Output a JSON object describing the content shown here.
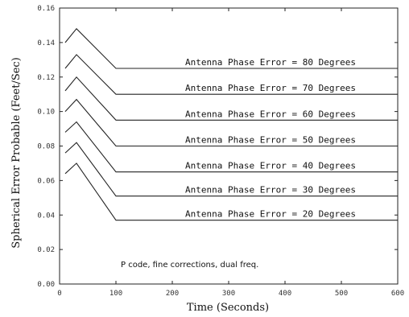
{
  "chart_data": {
    "type": "line",
    "title": "",
    "xlabel": "Time (Seconds)",
    "ylabel": "Spherical Error Probable (Feet/Sec)",
    "xlim": [
      0,
      600
    ],
    "ylim": [
      0.0,
      0.16
    ],
    "xticks": [
      "0",
      "100",
      "200",
      "300",
      "400",
      "500",
      "600"
    ],
    "yticks": [
      "0.00",
      "0.02",
      "0.04",
      "0.06",
      "0.08",
      "0.10",
      "0.12",
      "0.14",
      "0.16"
    ],
    "grid": false,
    "note": "P code, fine corrections, dual freq.",
    "series": [
      {
        "name": "Antenna Phase Error = 80 Degrees",
        "x": [
          10,
          30,
          100,
          600
        ],
        "y": [
          0.14,
          0.148,
          0.125,
          0.125
        ]
      },
      {
        "name": "Antenna Phase Error = 70 Degrees",
        "x": [
          10,
          30,
          100,
          600
        ],
        "y": [
          0.125,
          0.133,
          0.11,
          0.11
        ]
      },
      {
        "name": "Antenna Phase Error = 60 Degrees",
        "x": [
          10,
          30,
          100,
          600
        ],
        "y": [
          0.112,
          0.12,
          0.095,
          0.095
        ]
      },
      {
        "name": "Antenna Phase Error = 50 Degrees",
        "x": [
          10,
          30,
          100,
          600
        ],
        "y": [
          0.1,
          0.107,
          0.08,
          0.08
        ]
      },
      {
        "name": "Antenna Phase Error = 40 Degrees",
        "x": [
          10,
          30,
          100,
          600
        ],
        "y": [
          0.088,
          0.094,
          0.065,
          0.065
        ]
      },
      {
        "name": "Antenna Phase Error = 30 Degrees",
        "x": [
          10,
          30,
          100,
          600
        ],
        "y": [
          0.076,
          0.082,
          0.051,
          0.051
        ]
      },
      {
        "name": "Antenna Phase Error = 20 Degrees",
        "x": [
          10,
          30,
          100,
          600
        ],
        "y": [
          0.064,
          0.07,
          0.037,
          0.037
        ]
      }
    ]
  }
}
